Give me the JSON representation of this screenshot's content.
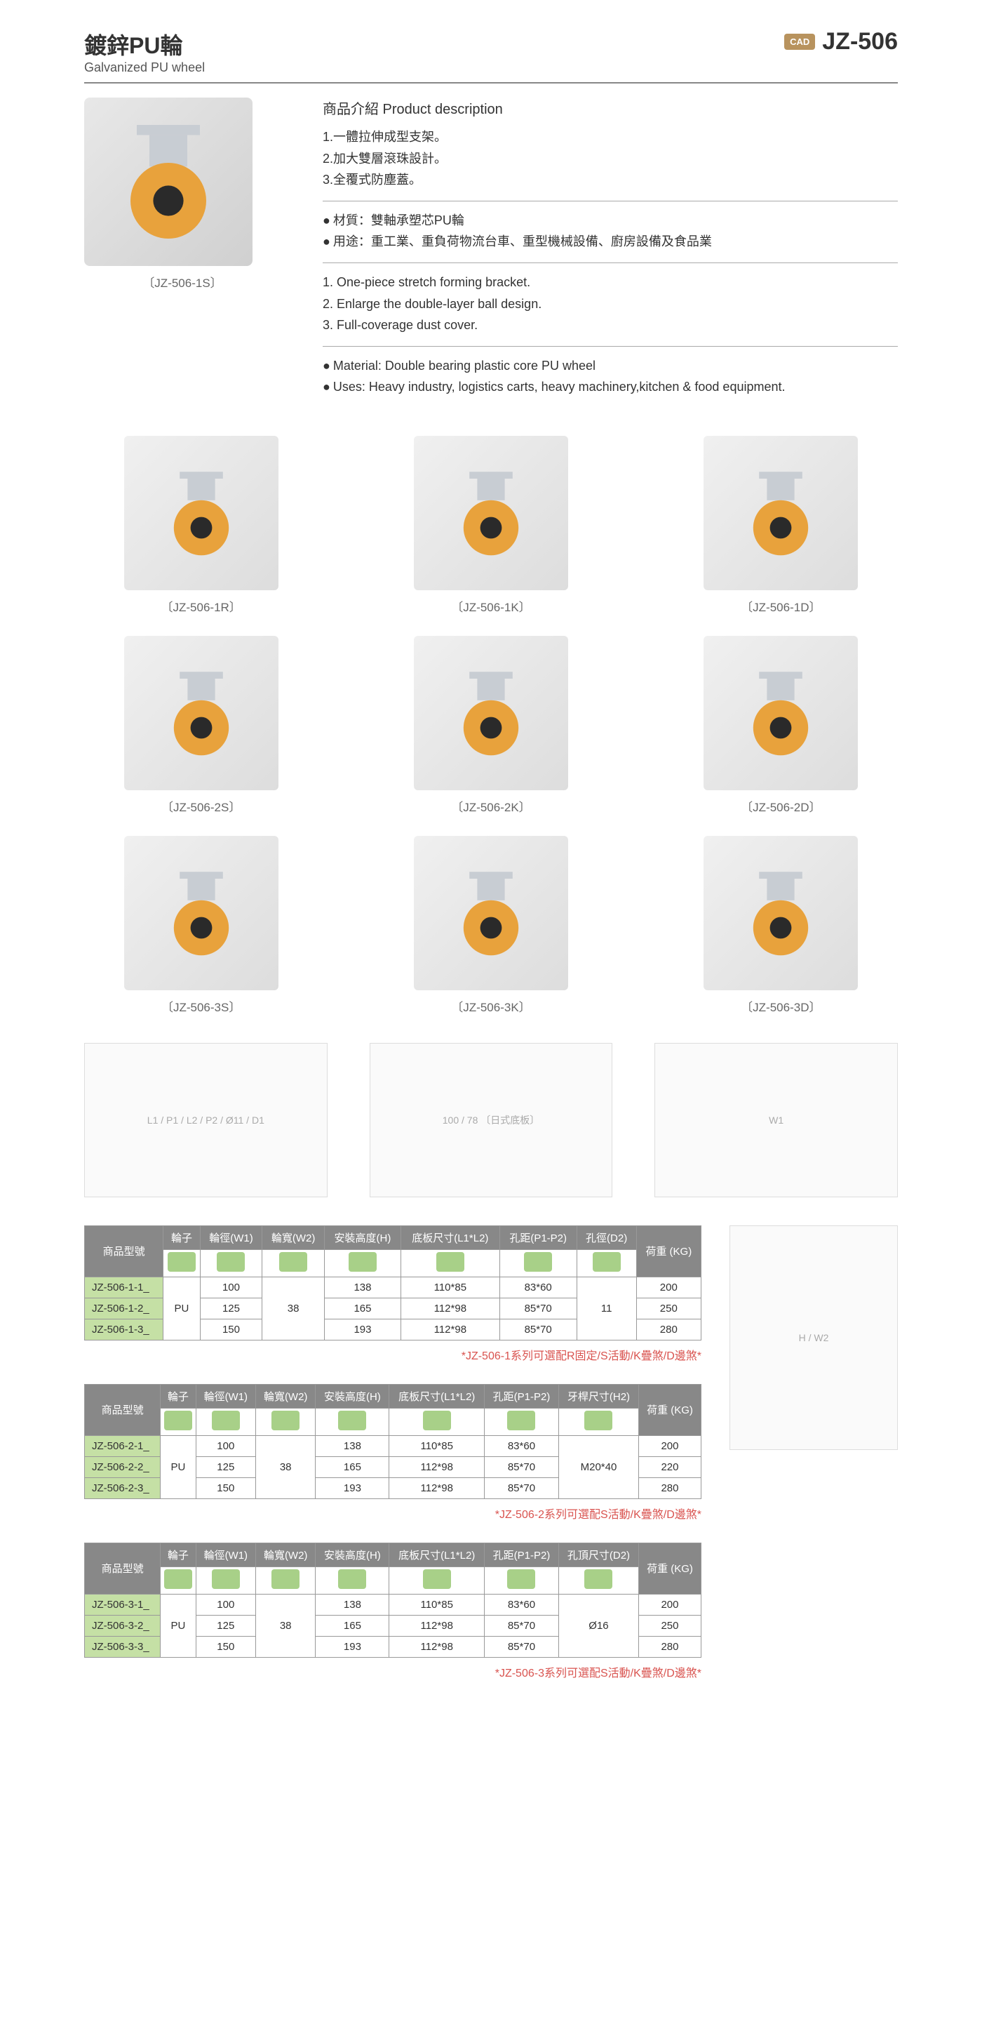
{
  "header": {
    "title_cn": "鍍鋅PU輪",
    "title_en": "Galvanized PU wheel",
    "cad_label": "CAD",
    "product_code": "JZ-506"
  },
  "hero": {
    "label": "〔JZ-506-1S〕"
  },
  "description": {
    "heading": "商品介紹 Product description",
    "cn_points": [
      "1.一體拉伸成型支架。",
      "2.加大雙層滾珠設計。",
      "3.全覆式防塵蓋。"
    ],
    "cn_material": "材質：雙軸承塑芯PU輪",
    "cn_uses": "用途：重工業、重負荷物流台車、重型機械設備、廚房設備及食品業",
    "en_points": [
      "1. One-piece stretch forming bracket.",
      "2. Enlarge the double-layer ball design.",
      "3. Full-coverage dust cover."
    ],
    "en_material": "Material: Double bearing plastic core PU wheel",
    "en_uses": "Uses: Heavy industry, logistics carts, heavy machinery,kitchen & food equipment."
  },
  "products": [
    {
      "label": "〔JZ-506-1R〕"
    },
    {
      "label": "〔JZ-506-1K〕"
    },
    {
      "label": "〔JZ-506-1D〕"
    },
    {
      "label": "〔JZ-506-2S〕"
    },
    {
      "label": "〔JZ-506-2K〕"
    },
    {
      "label": "〔JZ-506-2D〕"
    },
    {
      "label": "〔JZ-506-3S〕"
    },
    {
      "label": "〔JZ-506-3K〕"
    },
    {
      "label": "〔JZ-506-3D〕"
    }
  ],
  "diagram_labels": {
    "d1": "L1 / P1 / L2 / P2 / Ø11 / D1",
    "d2": "100 / 78 〔日式底板〕",
    "d3": "W1",
    "side": "H / W2"
  },
  "tables": {
    "headers_common": {
      "model": "商品型號",
      "wheel": "輪子",
      "w1": "輪徑(W1)",
      "w2": "輪寬(W2)",
      "h": "安裝高度(H)",
      "plate": "底板尺寸(L1*L2)",
      "hole": "孔距(P1-P2)",
      "load": "荷重 (KG)"
    },
    "t1": {
      "col7": "孔徑(D2)",
      "rows": [
        {
          "model": "JZ-506-1-1_",
          "w1": "100",
          "h": "138",
          "plate": "110*85",
          "hole": "83*60",
          "load": "200"
        },
        {
          "model": "JZ-506-1-2_",
          "w1": "125",
          "h": "165",
          "plate": "112*98",
          "hole": "85*70",
          "load": "250"
        },
        {
          "model": "JZ-506-1-3_",
          "w1": "150",
          "h": "193",
          "plate": "112*98",
          "hole": "85*70",
          "load": "280"
        }
      ],
      "wheel_type": "PU",
      "w2_val": "38",
      "d2_val": "11",
      "note": "*JZ-506-1系列可選配R固定/S活動/K疊煞/D邊煞*"
    },
    "t2": {
      "col7": "牙桿尺寸(H2)",
      "rows": [
        {
          "model": "JZ-506-2-1_",
          "w1": "100",
          "h": "138",
          "plate": "110*85",
          "hole": "83*60",
          "load": "200"
        },
        {
          "model": "JZ-506-2-2_",
          "w1": "125",
          "h": "165",
          "plate": "112*98",
          "hole": "85*70",
          "load": "220"
        },
        {
          "model": "JZ-506-2-3_",
          "w1": "150",
          "h": "193",
          "plate": "112*98",
          "hole": "85*70",
          "load": "280"
        }
      ],
      "wheel_type": "PU",
      "w2_val": "38",
      "h2_val": "M20*40",
      "note": "*JZ-506-2系列可選配S活動/K疊煞/D邊煞*"
    },
    "t3": {
      "col7": "孔頂尺寸(D2)",
      "rows": [
        {
          "model": "JZ-506-3-1_",
          "w1": "100",
          "h": "138",
          "plate": "110*85",
          "hole": "83*60",
          "load": "200"
        },
        {
          "model": "JZ-506-3-2_",
          "w1": "125",
          "h": "165",
          "plate": "112*98",
          "hole": "85*70",
          "load": "250"
        },
        {
          "model": "JZ-506-3-3_",
          "w1": "150",
          "h": "193",
          "plate": "112*98",
          "hole": "85*70",
          "load": "280"
        }
      ],
      "wheel_type": "PU",
      "w2_val": "38",
      "d2_val": "Ø16",
      "note": "*JZ-506-3系列可選配S活動/K疊煞/D邊煞*"
    }
  },
  "colors": {
    "wheel_orange": "#e8a23c",
    "wheel_dark": "#2a2a2a",
    "bracket": "#c8cdd3",
    "table_head": "#888888",
    "row_green": "#c5e0a5",
    "icon_green": "#a8d088",
    "note_red": "#d9534f"
  }
}
